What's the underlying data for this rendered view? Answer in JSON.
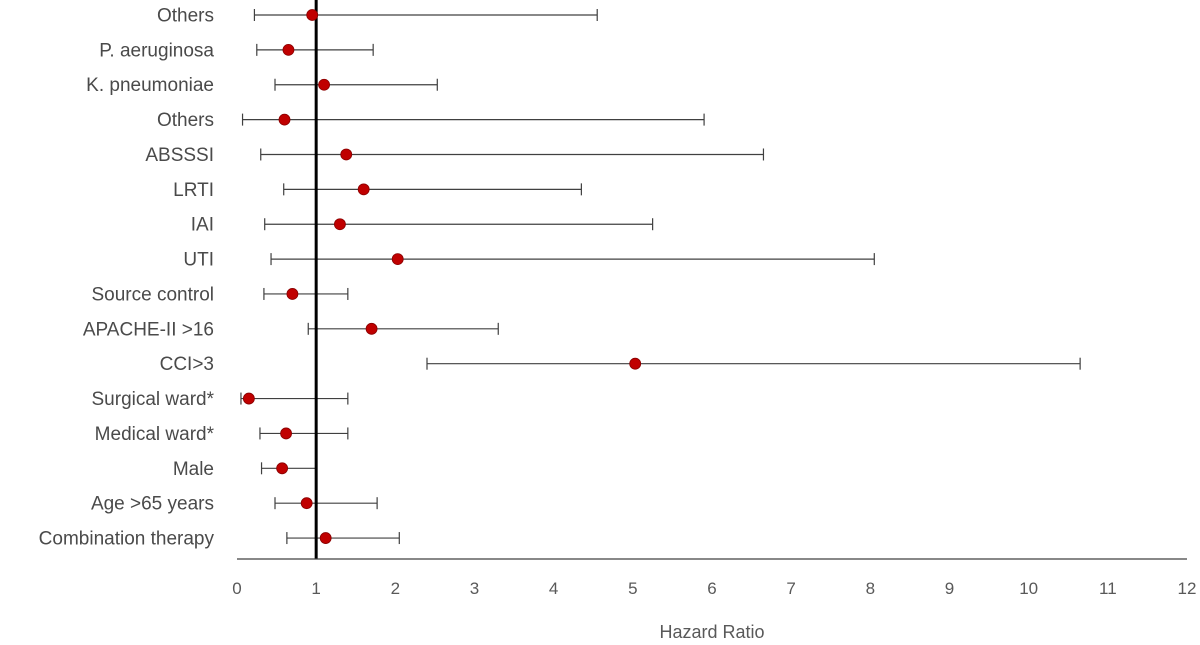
{
  "chart_data": {
    "type": "scatter",
    "subtype": "forest-plot",
    "title": "",
    "xlabel": "Hazard Ratio",
    "ylabel": "",
    "xlim": [
      0,
      12
    ],
    "xticks": [
      "0",
      "1",
      "2",
      "3",
      "4",
      "5",
      "6",
      "7",
      "8",
      "9",
      "10",
      "11",
      "12"
    ],
    "reference_line": 1,
    "grid": false,
    "legend": "none",
    "colors": {
      "point": "#c00000",
      "error_bar": "#404040",
      "reference_line": "#000000",
      "axis": "#404040"
    },
    "rows": [
      {
        "label": "Others",
        "hr": 0.95,
        "ci_low": 0.22,
        "ci_high": 4.55
      },
      {
        "label": "P. aeruginosa",
        "hr": 0.65,
        "ci_low": 0.25,
        "ci_high": 1.72
      },
      {
        "label": "K. pneumoniae",
        "hr": 1.1,
        "ci_low": 0.48,
        "ci_high": 2.53
      },
      {
        "label": "Others",
        "hr": 0.6,
        "ci_low": 0.07,
        "ci_high": 5.9
      },
      {
        "label": "ABSSSI",
        "hr": 1.38,
        "ci_low": 0.3,
        "ci_high": 6.65
      },
      {
        "label": "LRTI",
        "hr": 1.6,
        "ci_low": 0.59,
        "ci_high": 4.35
      },
      {
        "label": "IAI",
        "hr": 1.3,
        "ci_low": 0.35,
        "ci_high": 5.25
      },
      {
        "label": "UTI",
        "hr": 2.03,
        "ci_low": 0.43,
        "ci_high": 8.05
      },
      {
        "label": "Source control",
        "hr": 0.7,
        "ci_low": 0.34,
        "ci_high": 1.4
      },
      {
        "label": "APACHE-II >16",
        "hr": 1.7,
        "ci_low": 0.9,
        "ci_high": 3.3
      },
      {
        "label": "CCI>3",
        "hr": 5.03,
        "ci_low": 2.4,
        "ci_high": 10.65
      },
      {
        "label": "Surgical ward*",
        "hr": 0.15,
        "ci_low": 0.05,
        "ci_high": 1.4
      },
      {
        "label": "Medical ward*",
        "hr": 0.62,
        "ci_low": 0.29,
        "ci_high": 1.4
      },
      {
        "label": "Male",
        "hr": 0.57,
        "ci_low": 0.31,
        "ci_high": 1.0
      },
      {
        "label": "Age >65 years",
        "hr": 0.88,
        "ci_low": 0.48,
        "ci_high": 1.77
      },
      {
        "label": "Combination therapy",
        "hr": 1.12,
        "ci_low": 0.63,
        "ci_high": 2.05
      }
    ]
  }
}
